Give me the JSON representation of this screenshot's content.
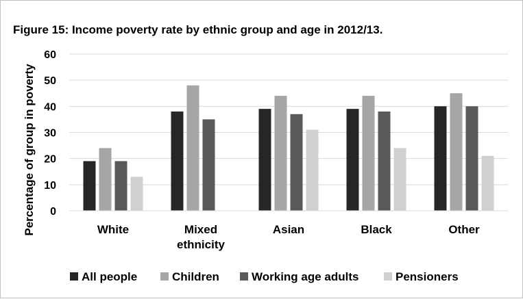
{
  "chart_data": {
    "type": "bar",
    "title": "Figure 15: Income poverty rate by ethnic group and age in 2012/13.",
    "xlabel": "",
    "ylabel": "Percentage of group in poverty",
    "ylim": [
      0,
      60
    ],
    "yticks": [
      0,
      10,
      20,
      30,
      40,
      50,
      60
    ],
    "grid": true,
    "legend_position": "bottom",
    "categories": [
      [
        "White"
      ],
      [
        "Mixed",
        "ethnicity"
      ],
      [
        "Asian"
      ],
      [
        "Black"
      ],
      [
        "Other"
      ]
    ],
    "series": [
      {
        "name": "All people",
        "color": "#262626",
        "values": [
          19,
          38,
          39,
          39,
          40
        ]
      },
      {
        "name": "Children",
        "color": "#a6a6a6",
        "values": [
          24,
          48,
          44,
          44,
          45
        ]
      },
      {
        "name": "Working age adults",
        "color": "#595959",
        "values": [
          19,
          35,
          37,
          38,
          40
        ]
      },
      {
        "name": "Pensioners",
        "color": "#d0d0d0",
        "values": [
          13,
          null,
          31,
          24,
          21
        ]
      }
    ]
  }
}
